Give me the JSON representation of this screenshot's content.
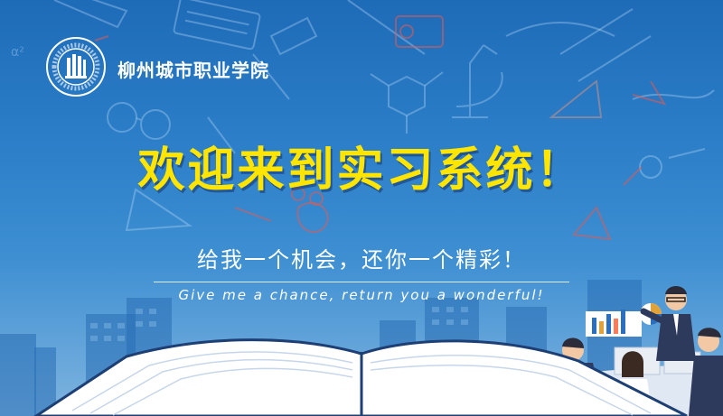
{
  "banner": {
    "school_name": "柳州城市职业学院",
    "logo_ring_text": "LIUZHOU CITY VOCATIONAL COLLEGE",
    "logo_ring_text_cn": "柳州城市职业学院",
    "welcome_title": "欢迎来到实习系统！",
    "slogan_cn": "给我一个机会，还你一个精彩！",
    "slogan_en": "Give me a chance, return you a wonderful!"
  },
  "colors": {
    "title_yellow": "#ffe500",
    "background_top": "#1e6bb8",
    "background_bottom": "#7fb4df",
    "text_white": "#ffffff"
  },
  "icons": [
    "college-logo-icon",
    "microscope-icon",
    "projector-icon",
    "glasses-icon",
    "open-book-icon",
    "bar-chart-icon",
    "pie-chart-icon"
  ]
}
